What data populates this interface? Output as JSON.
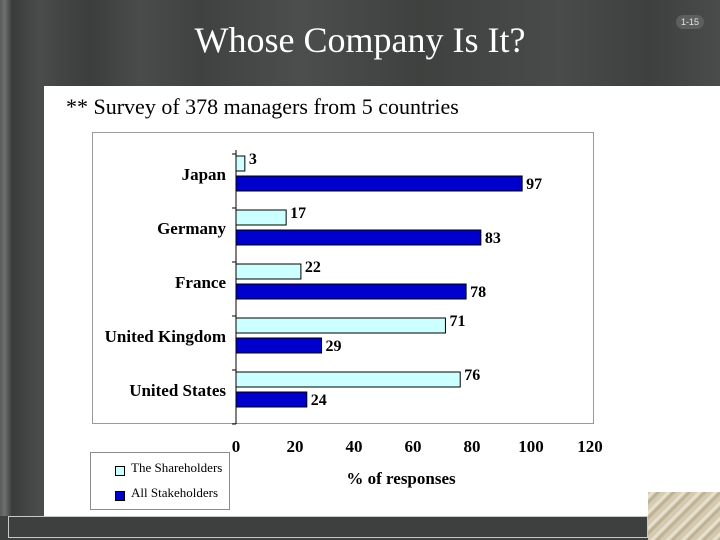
{
  "slide": {
    "title": "Whose Company Is It?",
    "slide_number": "1-15",
    "subtitle": "** Survey of 378 managers from 5 countries"
  },
  "legend": {
    "items": [
      {
        "label": "The Shareholders",
        "color": "#ccffff"
      },
      {
        "label": "All Stakeholders",
        "color": "#0000cc"
      }
    ]
  },
  "chart_data": {
    "type": "bar",
    "orientation": "horizontal",
    "categories": [
      "Japan",
      "Germany",
      "France",
      "United Kingdom",
      "United States"
    ],
    "series": [
      {
        "name": "The Shareholders",
        "values": [
          3,
          17,
          22,
          71,
          76
        ],
        "color": "#ccffff"
      },
      {
        "name": "All Stakeholders",
        "values": [
          97,
          83,
          78,
          29,
          24
        ],
        "color": "#0000cc"
      }
    ],
    "xlabel": "% of responses",
    "xlim": [
      0,
      120
    ],
    "xticks": [
      0,
      20,
      40,
      60,
      80,
      100,
      120
    ],
    "grid": false,
    "legend_position": "bottom-left"
  }
}
